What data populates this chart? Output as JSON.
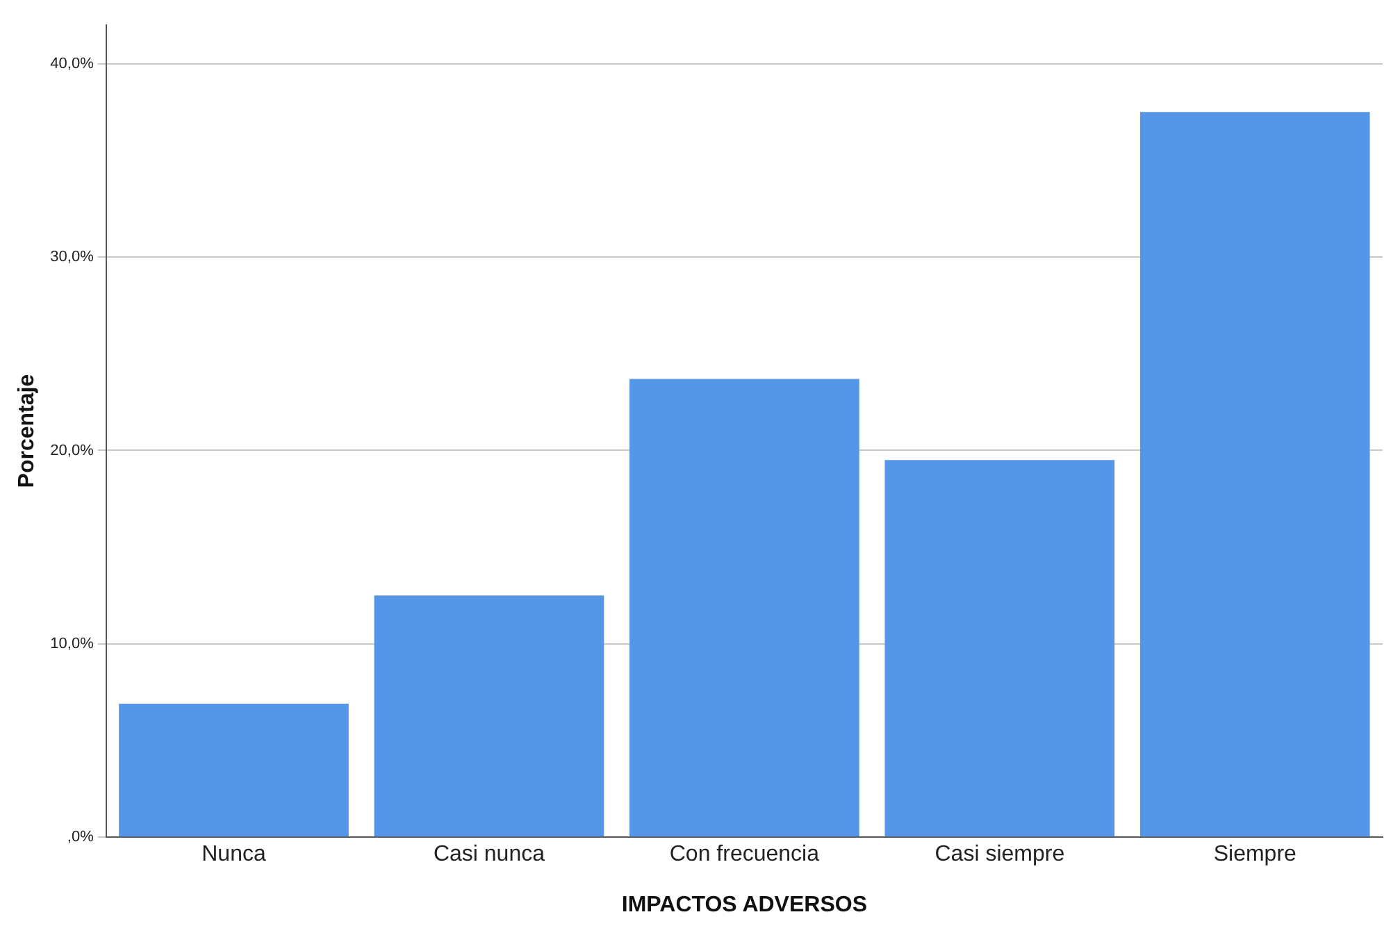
{
  "chart_data": {
    "type": "bar",
    "xlabel": "IMPACTOS ADVERSOS",
    "ylabel": "Porcentaje",
    "categories": [
      "Nunca",
      "Casi nunca",
      "Con frecuencia",
      "Casi siempre",
      "Siempre"
    ],
    "values": [
      6.9,
      12.5,
      23.7,
      19.5,
      37.5
    ],
    "color": "#5596e6",
    "ylim": [
      0,
      42
    ],
    "yticks": [
      {
        "value": 0,
        "label": ",0%"
      },
      {
        "value": 10,
        "label": "10,0%"
      },
      {
        "value": 20,
        "label": "20,0%"
      },
      {
        "value": 30,
        "label": "30,0%"
      },
      {
        "value": 40,
        "label": "40,0%"
      }
    ],
    "grid": "y",
    "legend": false
  }
}
